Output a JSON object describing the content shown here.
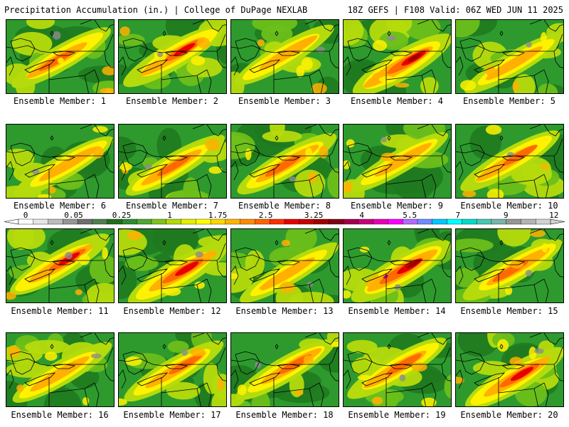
{
  "header": {
    "left": "Precipitation Accumulation (in.) | College of DuPage NEXLAB",
    "right": "18Z GEFS | F108 Valid: 06Z WED JUN 11 2025"
  },
  "panel_label_prefix": "Ensemble Member:",
  "members": [
    {
      "label": "Ensemble Member: 1",
      "intensity": 0.45
    },
    {
      "label": "Ensemble Member: 2",
      "intensity": 0.6
    },
    {
      "label": "Ensemble Member: 3",
      "intensity": 0.35
    },
    {
      "label": "Ensemble Member: 4",
      "intensity": 0.8
    },
    {
      "label": "Ensemble Member: 5",
      "intensity": 0.3
    },
    {
      "label": "Ensemble Member: 6",
      "intensity": 0.35
    },
    {
      "label": "Ensemble Member: 7",
      "intensity": 0.45
    },
    {
      "label": "Ensemble Member: 8",
      "intensity": 0.55
    },
    {
      "label": "Ensemble Member: 9",
      "intensity": 0.3
    },
    {
      "label": "Ensemble Member: 10",
      "intensity": 0.5
    },
    {
      "label": "Ensemble Member: 11",
      "intensity": 0.6
    },
    {
      "label": "Ensemble Member: 12",
      "intensity": 0.75
    },
    {
      "label": "Ensemble Member: 13",
      "intensity": 0.3
    },
    {
      "label": "Ensemble Member: 14",
      "intensity": 0.85
    },
    {
      "label": "Ensemble Member: 15",
      "intensity": 0.55
    },
    {
      "label": "Ensemble Member: 16",
      "intensity": 0.4
    },
    {
      "label": "Ensemble Member: 17",
      "intensity": 0.45
    },
    {
      "label": "Ensemble Member: 18",
      "intensity": 0.45
    },
    {
      "label": "Ensemble Member: 19",
      "intensity": 0.55
    },
    {
      "label": "Ensemble Member: 20",
      "intensity": 0.7
    }
  ],
  "colorbar": {
    "labels": [
      "0",
      "0.05",
      "0.25",
      "1",
      "1.75",
      "2.5",
      "3.25",
      "4",
      "5.5",
      "7",
      "9",
      "12"
    ],
    "colors": [
      "#ffffff",
      "#e6e6e6",
      "#bdbdbd",
      "#969696",
      "#6e6e6e",
      "#4f7f4f",
      "#1e6e1e",
      "#2e8b2e",
      "#4ea832",
      "#7fc31e",
      "#b4d90a",
      "#e6ef00",
      "#ffff00",
      "#ffd700",
      "#ffb400",
      "#ff8c00",
      "#ff6400",
      "#ff2d00",
      "#e60000",
      "#c80000",
      "#a00000",
      "#800014",
      "#a0004b",
      "#c8007d",
      "#e600b4",
      "#ff00ff",
      "#b469ff",
      "#6e8cff",
      "#00c8ff",
      "#00ffff",
      "#00dcc8",
      "#46c8b4",
      "#7ab4aa",
      "#969696",
      "#b4b4b4",
      "#d2d2d2"
    ]
  },
  "palette": {
    "dark_green": "#1f7a1f",
    "green": "#2e9a2e",
    "light_green": "#6cbf1a",
    "yellow_green": "#b5db0c",
    "yellow": "#fff200",
    "orange": "#ffb000",
    "red_orange": "#ff6a00",
    "red": "#e60000",
    "dark_red": "#a00000",
    "gray": "#8c8c8c",
    "magenta": "#c0008c"
  }
}
